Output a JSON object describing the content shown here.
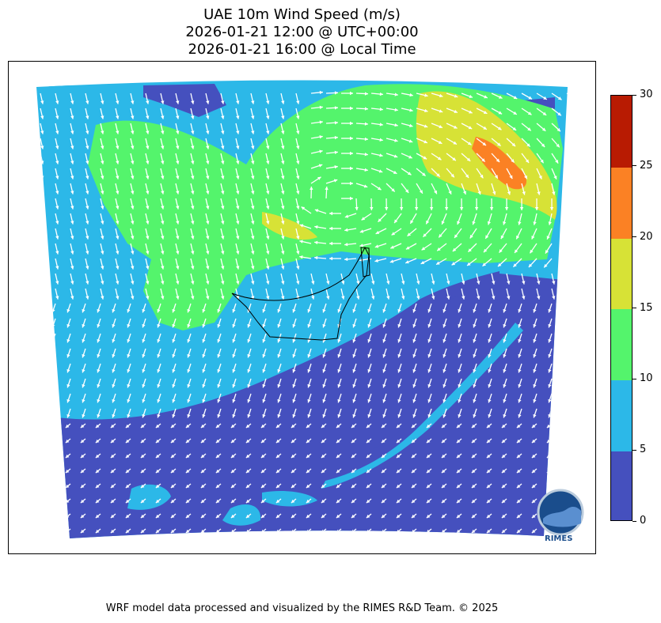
{
  "title": {
    "line1": "UAE 10m Wind Speed (m/s)",
    "line2": "2026-01-21 12:00 @ UTC+00:00",
    "line3": "2026-01-21 16:00 @ Local Time"
  },
  "colorbar": {
    "levels": [
      {
        "label": "0",
        "color": "#4550be"
      },
      {
        "label": "5",
        "color": "#2cb8e8"
      },
      {
        "label": "10",
        "color": "#54f46c"
      },
      {
        "label": "15",
        "color": "#d7e236"
      },
      {
        "label": "20",
        "color": "#fb8124"
      },
      {
        "label": "25",
        "color": "#b81b02"
      },
      {
        "label": "30",
        "color": ""
      }
    ]
  },
  "logo": {
    "text": "RIMES",
    "icon": "rimes-logo-icon"
  },
  "footer": {
    "text": "WRF model data processed and visualized by the RIMES R&D Team. © 2025"
  },
  "colors": {
    "low": "#4550be",
    "mid": "#2cb8e8",
    "high": "#54f46c",
    "veryhigh": "#d7e236",
    "extreme": "#fb8124",
    "vector": "#ffffff",
    "border": "#000000"
  }
}
